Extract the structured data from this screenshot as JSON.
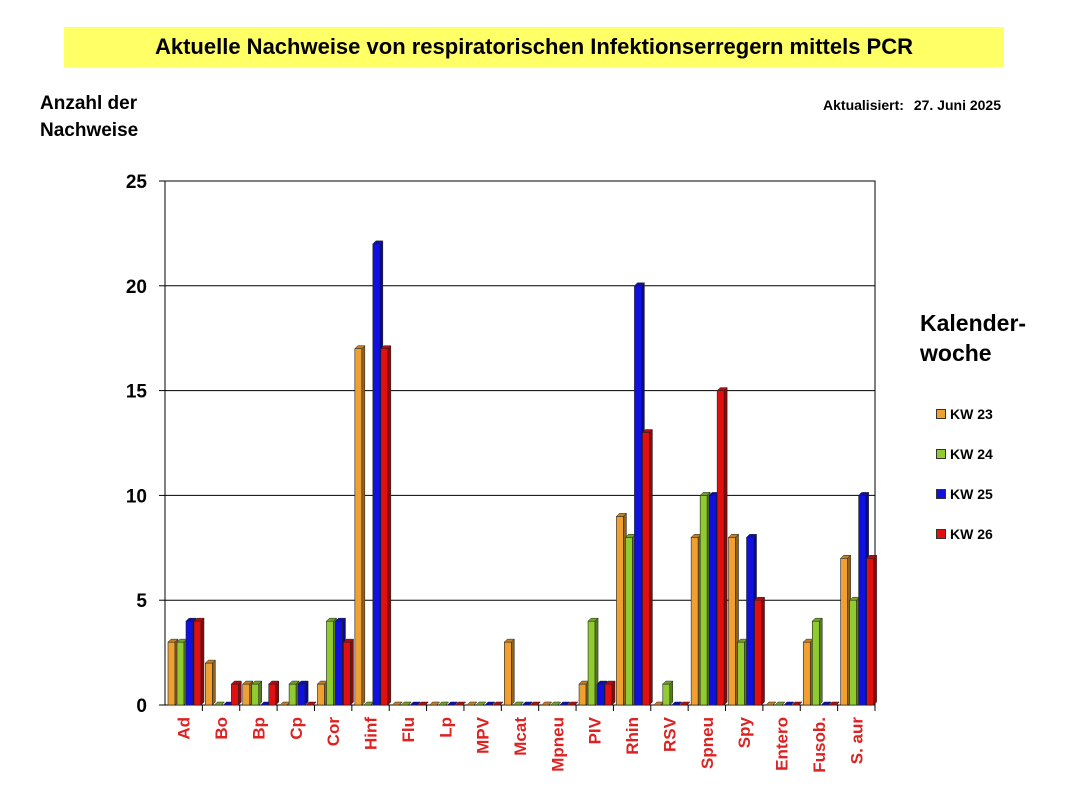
{
  "title": "Aktuelle Nachweise von respiratorischen Infektionserregern mittels PCR",
  "ylabel_lines": [
    "Anzahl der",
    "Nachweise"
  ],
  "updated": {
    "label": "Aktualisiert:",
    "date": "27. Juni 2025"
  },
  "legend_title_lines": [
    "Kalender-",
    "woche"
  ],
  "colors": {
    "KW 23": "#f0a030",
    "KW 24": "#90cc30",
    "KW 25": "#1010e0",
    "KW 26": "#e01010",
    "category_label": "#dd2222"
  },
  "chart_data": {
    "type": "bar",
    "categories": [
      "Ad",
      "Bo",
      "Bp",
      "Cp",
      "Cor",
      "Hinf",
      "Flu",
      "Lp",
      "MPV",
      "Mcat",
      "Mpneu",
      "PIV",
      "Rhin",
      "RSV",
      "Spneu",
      "Spy",
      "Entero",
      "Fusob.",
      "S. aur"
    ],
    "series": [
      {
        "name": "KW 23",
        "values": [
          3,
          2,
          1,
          0,
          1,
          17,
          0,
          0,
          0,
          3,
          0,
          1,
          9,
          0,
          8,
          8,
          0,
          3,
          7
        ]
      },
      {
        "name": "KW 24",
        "values": [
          3,
          0,
          1,
          1,
          4,
          0,
          0,
          0,
          0,
          0,
          0,
          4,
          8,
          1,
          10,
          3,
          0,
          4,
          5
        ]
      },
      {
        "name": "KW 25",
        "values": [
          4,
          0,
          0,
          1,
          4,
          22,
          0,
          0,
          0,
          0,
          0,
          1,
          20,
          0,
          10,
          8,
          0,
          0,
          10
        ]
      },
      {
        "name": "KW 26",
        "values": [
          4,
          1,
          1,
          0,
          3,
          17,
          0,
          0,
          0,
          0,
          0,
          1,
          13,
          0,
          15,
          5,
          0,
          0,
          7
        ]
      }
    ],
    "ylim": [
      0,
      25
    ],
    "yticks": [
      0,
      5,
      10,
      15,
      20,
      25
    ],
    "grid": true,
    "legend_position": "right"
  }
}
